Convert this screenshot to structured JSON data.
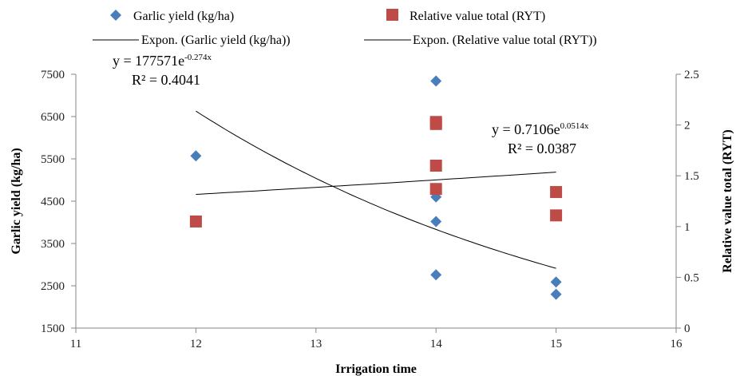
{
  "chart_data": {
    "type": "scatter",
    "xlabel": "Irrigation time",
    "ylabel_left": "Garlic yield (kg/ha)",
    "ylabel_right": "Relative value total (RYT)",
    "x_range": [
      11,
      16
    ],
    "x_ticks": [
      "11",
      "12",
      "13",
      "14",
      "15",
      "16"
    ],
    "y_left_range": [
      1500,
      7500
    ],
    "y_left_ticks": [
      "1500",
      "2500",
      "3500",
      "4500",
      "5500",
      "6500",
      "7500"
    ],
    "y_right_range": [
      0,
      2.5
    ],
    "y_right_ticks": [
      "0",
      "0.5",
      "1",
      "1.5",
      "2",
      "2.5"
    ],
    "grid": false,
    "legend_position": "top",
    "legend": [
      {
        "label": "Garlic yield (kg/ha)",
        "marker": "diamond"
      },
      {
        "label": "Relative value total (RYT)",
        "marker": "square"
      },
      {
        "label": "Expon. (Garlic yield (kg/ha))",
        "marker": "line"
      },
      {
        "label": "Expon. (Relative value total (RYT))",
        "marker": "line"
      }
    ],
    "series": [
      {
        "name": "Garlic yield (kg/ha)",
        "axis": "left",
        "color": "#4a7ebb",
        "points": [
          [
            12,
            5570
          ],
          [
            14,
            7340
          ],
          [
            14,
            4600
          ],
          [
            14,
            4020
          ],
          [
            14,
            2760
          ],
          [
            15,
            2590
          ],
          [
            15,
            2300
          ]
        ]
      },
      {
        "name": "Relative value total (RYT)",
        "axis": "right",
        "color": "#be4b48",
        "points": [
          [
            12,
            1.05
          ],
          [
            14,
            2.03
          ],
          [
            14,
            2.01
          ],
          [
            14,
            1.6
          ],
          [
            14,
            1.37
          ],
          [
            15,
            1.34
          ],
          [
            15,
            1.11
          ]
        ]
      }
    ],
    "trendlines": [
      {
        "name": "Expon. (Garlic yield (kg/ha))",
        "axis": "left",
        "a": 177571,
        "b": -0.274,
        "x_from": 12,
        "x_to": 15,
        "equation_prefix": "y = 177571e",
        "equation_exp": "-0.274x",
        "r2": "R² = 0.4041"
      },
      {
        "name": "Expon. (Relative value total (RYT))",
        "axis": "right",
        "a": 0.7106,
        "b": 0.0514,
        "x_from": 12,
        "x_to": 15,
        "equation_prefix": "y = 0.7106e",
        "equation_exp": "0.0514x",
        "r2": "R² = 0.0387"
      }
    ]
  }
}
